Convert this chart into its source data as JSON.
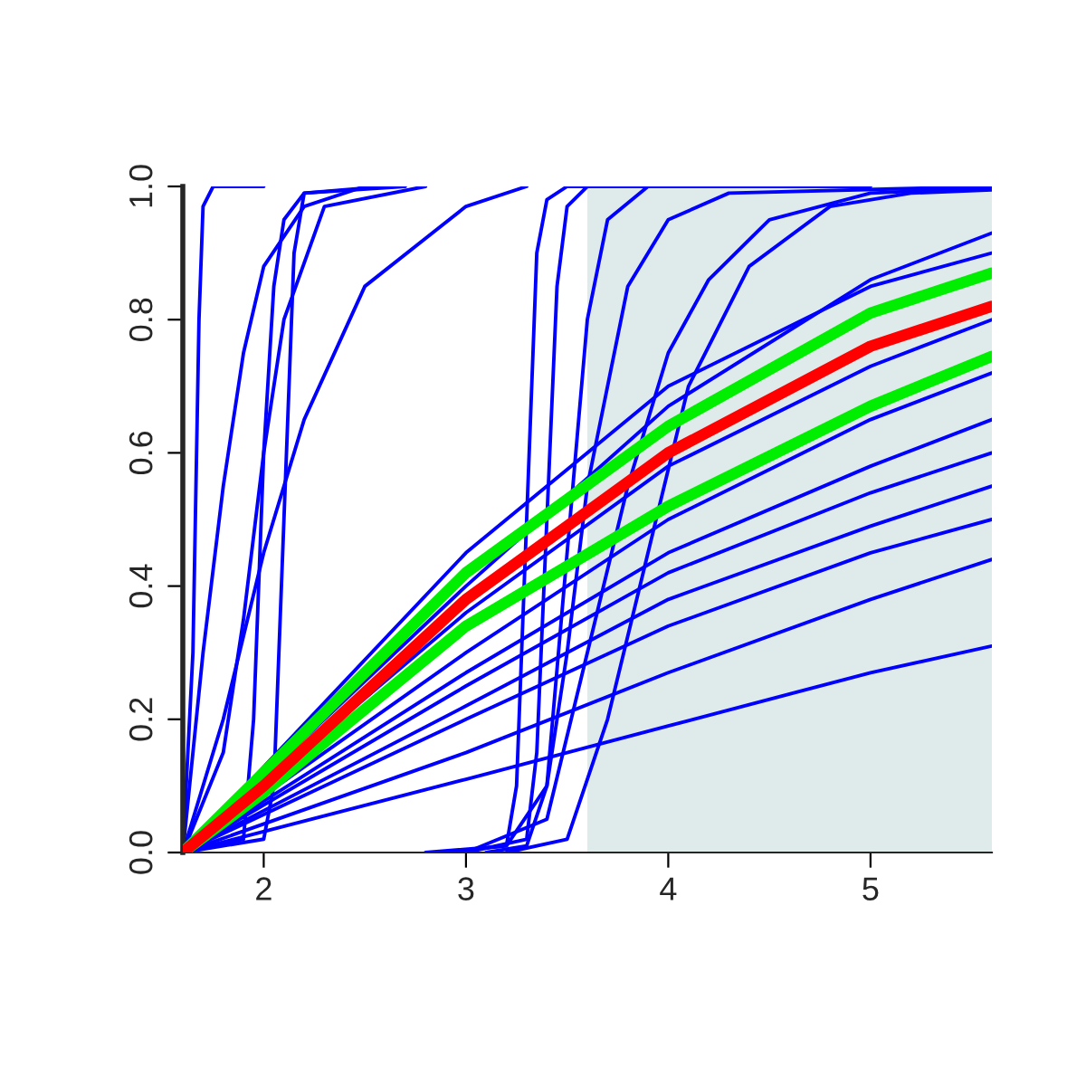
{
  "chart_data": {
    "type": "line",
    "xlim": [
      1.6,
      5.6
    ],
    "ylim": [
      0,
      1
    ],
    "xticks": [
      2,
      3,
      4,
      5
    ],
    "yticks": [
      {
        "value": 0,
        "label": "0.0"
      },
      {
        "value": 0.2,
        "label": "0.2"
      },
      {
        "value": 0.4,
        "label": "0.4"
      },
      {
        "value": 0.6,
        "label": "0.6"
      },
      {
        "value": 0.8,
        "label": "0.8"
      },
      {
        "value": 1,
        "label": "1.0"
      }
    ],
    "grid": false,
    "legend": false,
    "marker": "none",
    "line_style": "solid",
    "bands": [
      {
        "axis": "x",
        "from": 3.6,
        "to": 5.6,
        "color": "#dfebeb"
      }
    ],
    "series": [
      {
        "color": "#0000ff",
        "x": [
          1.6,
          1.65,
          1.68,
          1.7,
          1.75,
          2.0
        ],
        "values": [
          0,
          0.3,
          0.8,
          0.97,
          1,
          1
        ]
      },
      {
        "color": "#0000ff",
        "x": [
          1.6,
          1.7,
          1.8,
          1.9,
          2.0,
          2.2,
          2.5
        ],
        "values": [
          0,
          0.3,
          0.55,
          0.75,
          0.88,
          0.97,
          1
        ]
      },
      {
        "color": "#0000ff",
        "x": [
          1.6,
          1.9,
          1.95,
          2.0,
          2.05,
          2.1,
          2.2,
          2.6
        ],
        "values": [
          0,
          0.02,
          0.2,
          0.6,
          0.85,
          0.95,
          0.99,
          1
        ]
      },
      {
        "color": "#0000ff",
        "x": [
          1.6,
          2.0,
          2.05,
          2.1,
          2.15,
          2.2,
          2.7
        ],
        "values": [
          0,
          0.02,
          0.1,
          0.5,
          0.9,
          0.99,
          1
        ]
      },
      {
        "color": "#0000ff",
        "x": [
          1.6,
          1.8,
          2.0,
          2.2,
          2.5,
          3.0,
          3.3
        ],
        "values": [
          0,
          0.2,
          0.45,
          0.65,
          0.85,
          0.97,
          1
        ]
      },
      {
        "color": "#0000ff",
        "x": [
          1.6,
          1.8,
          1.9,
          2.0,
          2.1,
          2.3,
          2.8
        ],
        "values": [
          0,
          0.15,
          0.35,
          0.6,
          0.8,
          0.97,
          1
        ]
      },
      {
        "color": "#0000ff",
        "x": [
          2.9,
          3.2,
          3.25,
          3.3,
          3.35,
          3.4,
          3.5,
          4.0
        ],
        "values": [
          0,
          0.01,
          0.1,
          0.5,
          0.9,
          0.98,
          1,
          1
        ]
      },
      {
        "color": "#0000ff",
        "x": [
          3.0,
          3.3,
          3.35,
          3.4,
          3.45,
          3.5,
          3.6,
          4.5
        ],
        "values": [
          0,
          0.02,
          0.15,
          0.5,
          0.85,
          0.97,
          1,
          1
        ]
      },
      {
        "color": "#0000ff",
        "x": [
          3.1,
          3.3,
          3.4,
          3.5,
          3.6,
          3.7,
          3.9,
          5.0
        ],
        "values": [
          0,
          0.01,
          0.1,
          0.45,
          0.8,
          0.95,
          1,
          1
        ]
      },
      {
        "color": "#0000ff",
        "x": [
          2.8,
          3.2,
          3.4,
          3.5,
          3.6,
          3.8,
          4.0,
          4.3,
          5.6
        ],
        "values": [
          0,
          0.01,
          0.1,
          0.3,
          0.55,
          0.85,
          0.95,
          0.99,
          1
        ]
      },
      {
        "color": "#0000ff",
        "x": [
          3.2,
          3.5,
          3.7,
          3.9,
          4.1,
          4.4,
          4.8,
          5.2,
          5.6
        ],
        "values": [
          0,
          0.02,
          0.2,
          0.45,
          0.7,
          0.88,
          0.97,
          0.99,
          0.995
        ]
      },
      {
        "color": "#0000ff",
        "x": [
          3.0,
          3.4,
          3.6,
          3.8,
          4.0,
          4.2,
          4.5,
          5.0,
          5.6
        ],
        "values": [
          0,
          0.05,
          0.3,
          0.55,
          0.75,
          0.86,
          0.95,
          0.99,
          0.998
        ]
      },
      {
        "color": "#0000ff",
        "x": [
          1.6,
          3.0,
          4.0,
          5.0,
          5.6
        ],
        "values": [
          0,
          0.4,
          0.67,
          0.86,
          0.93
        ]
      },
      {
        "color": "#0000ff",
        "x": [
          1.6,
          3.0,
          4.0,
          5.0,
          5.6
        ],
        "values": [
          0,
          0.45,
          0.7,
          0.85,
          0.9
        ]
      },
      {
        "color": "#0000ff",
        "x": [
          1.6,
          3.0,
          4.0,
          5.0,
          5.6
        ],
        "values": [
          0,
          0.36,
          0.58,
          0.73,
          0.8
        ]
      },
      {
        "color": "#0000ff",
        "x": [
          1.6,
          3.0,
          4.0,
          5.0,
          5.6
        ],
        "values": [
          0,
          0.3,
          0.5,
          0.65,
          0.72
        ]
      },
      {
        "color": "#0000ff",
        "x": [
          1.6,
          3.0,
          4.0,
          5.0,
          5.6
        ],
        "values": [
          0,
          0.27,
          0.45,
          0.58,
          0.65
        ]
      },
      {
        "color": "#0000ff",
        "x": [
          1.6,
          3.0,
          4.0,
          5.0,
          5.6
        ],
        "values": [
          0,
          0.25,
          0.42,
          0.54,
          0.6
        ]
      },
      {
        "color": "#0000ff",
        "x": [
          1.6,
          3.0,
          4.0,
          5.0,
          5.6
        ],
        "values": [
          0,
          0.22,
          0.38,
          0.49,
          0.55
        ]
      },
      {
        "color": "#0000ff",
        "x": [
          1.6,
          3.0,
          4.0,
          5.0,
          5.6
        ],
        "values": [
          0,
          0.2,
          0.34,
          0.45,
          0.5
        ]
      },
      {
        "color": "#0000ff",
        "x": [
          1.6,
          3.0,
          4.0,
          5.0,
          5.6
        ],
        "values": [
          0,
          0.15,
          0.27,
          0.38,
          0.44
        ]
      },
      {
        "color": "#0000ff",
        "x": [
          1.6,
          3.0,
          4.0,
          5.0,
          5.6
        ],
        "values": [
          0,
          0.11,
          0.19,
          0.27,
          0.31
        ]
      },
      {
        "color": "#00ee00",
        "x": [
          1.6,
          2.0,
          3.0,
          4.0,
          5.0,
          5.6
        ],
        "values": [
          0,
          0.12,
          0.42,
          0.64,
          0.81,
          0.87
        ]
      },
      {
        "color": "#00ee00",
        "x": [
          1.6,
          2.0,
          3.0,
          4.0,
          5.0,
          5.6
        ],
        "values": [
          0,
          0.09,
          0.34,
          0.52,
          0.67,
          0.745
        ]
      },
      {
        "color": "#ff0000",
        "x": [
          1.6,
          2.0,
          3.0,
          4.0,
          5.0,
          5.6
        ],
        "values": [
          0,
          0.1,
          0.38,
          0.6,
          0.76,
          0.82
        ]
      }
    ]
  }
}
